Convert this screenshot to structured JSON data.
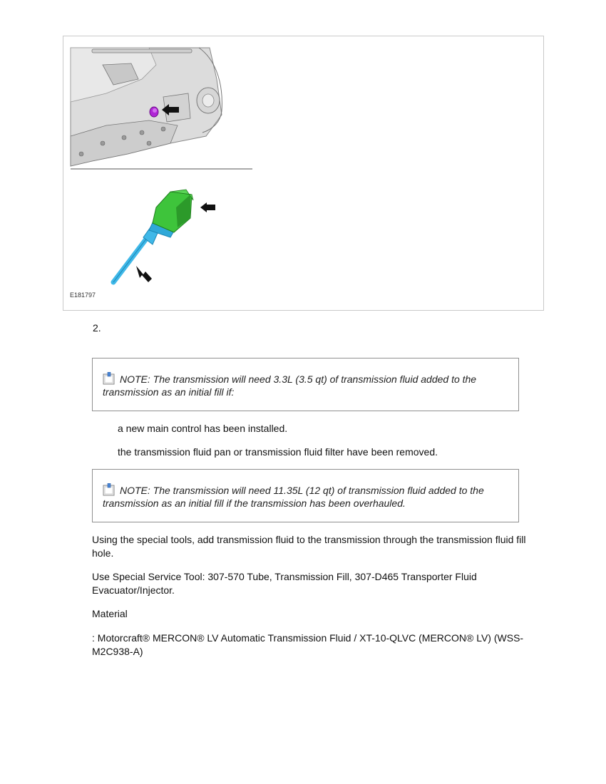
{
  "figure": {
    "code": "E181797"
  },
  "step": {
    "number": "2."
  },
  "notes": [
    {
      "icon": "note-icon",
      "text": "NOTE: The transmission will need 3.3L (3.5 qt) of transmission fluid added to the transmission as an initial fill if:"
    },
    {
      "icon": "note-icon",
      "text": "NOTE: The transmission will need 11.35L (12 qt) of transmission fluid added to the transmission as an initial fill if the transmission has been overhauled."
    }
  ],
  "conditions": [
    "a new main control has been installed.",
    "the transmission fluid pan or transmission fluid filter have been removed."
  ],
  "paragraphs": {
    "instruction": "Using the special tools, add transmission fluid to the transmission through the transmission fluid fill hole.",
    "tools": "Use Special Service Tool: 307-570 Tube, Transmission Fill, 307-D465 Transporter Fluid Evacuator/Injector.",
    "material_label": "Material",
    "material_value": ": Motorcraft® MERCON® LV Automatic Transmission Fluid / XT-10-QLVC (MERCON® LV) (WSS-M2C938-A)"
  },
  "colors": {
    "plug_highlight": "#b026d6",
    "fill_adapter": "#3ec43b",
    "fill_tube": "#3fb8e8"
  }
}
